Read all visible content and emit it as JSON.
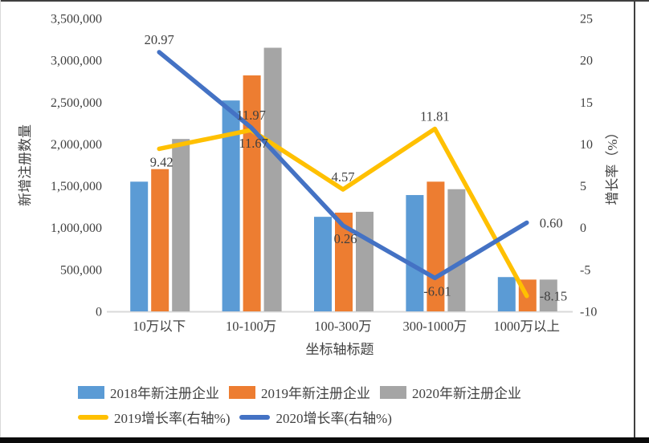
{
  "frame": {
    "background": "#ffffff",
    "edge_color": "#3f3f3f",
    "bottom_strip_color": "#0b0b0b"
  },
  "chart_data": {
    "type": "bar+line",
    "categories": [
      "10万以下",
      "10-100万",
      "100-300万",
      "300-1000万",
      "1000万以上"
    ],
    "x_axis_title": "坐标轴标题",
    "left_axis": {
      "title": "新增注册数量",
      "min": 0,
      "max": 3500000,
      "tick_step": 500000,
      "tick_labels": [
        "0",
        "500,000",
        "1,000,000",
        "1,500,000",
        "2,000,000",
        "2,500,000",
        "3,000,000",
        "3,500,000"
      ]
    },
    "right_axis": {
      "title": "增长率（%）",
      "min": -10,
      "max": 25,
      "tick_step": 5,
      "tick_labels": [
        "-10",
        "-5",
        "0",
        "5",
        "10",
        "15",
        "20",
        "25"
      ]
    },
    "bar_series": [
      {
        "name": "2018年新注册企业",
        "color": "#5B9BD5",
        "values": [
          1550000,
          2520000,
          1130000,
          1390000,
          410000
        ]
      },
      {
        "name": "2019年新注册企业",
        "color": "#ED7D31",
        "values": [
          1700000,
          2820000,
          1180000,
          1550000,
          380000
        ]
      },
      {
        "name": "2020年新注册企业",
        "color": "#A5A5A5",
        "values": [
          2060000,
          3150000,
          1190000,
          1460000,
          380000
        ]
      }
    ],
    "line_series": [
      {
        "name": "2019增长率(右轴%)",
        "color": "#FFC000",
        "values": [
          9.42,
          11.67,
          4.57,
          11.81,
          -8.15
        ],
        "labels": [
          "9.42",
          "11.67",
          "4.57",
          "11.81",
          "-8.15"
        ]
      },
      {
        "name": "2020增长率(右轴%)",
        "color": "#4472C4",
        "values": [
          20.97,
          11.97,
          0.26,
          -6.01,
          0.6
        ],
        "labels": [
          "20.97",
          "11.97",
          "0.26",
          "-6.01",
          "0.60"
        ]
      }
    ],
    "grid": false,
    "legend_position": "bottom-left",
    "text_color": "#404040",
    "axis_line_color": "#d9d9d9"
  }
}
